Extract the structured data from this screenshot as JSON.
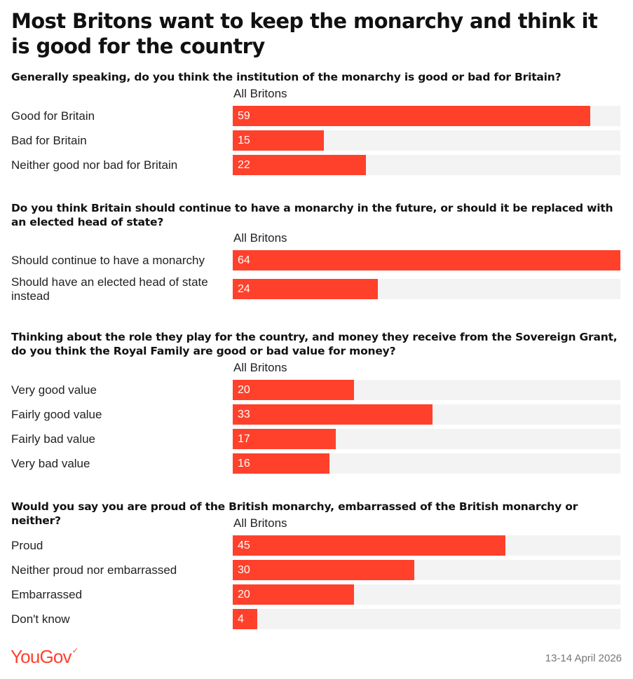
{
  "title": "Most Britons want to keep the monarchy and think it is good for the country",
  "column_header": "All Britons",
  "footer": {
    "logo_text": "YouGov",
    "date": "13-14 April 2026"
  },
  "colors": {
    "bar": "#ff412c",
    "track": "#f3f3f3",
    "logo": "#ff412c"
  },
  "chart_data": [
    {
      "type": "bar",
      "orientation": "horizontal",
      "title": "Generally speaking, do you think the institution of the monarchy is good or bad for Britain?",
      "series": [
        {
          "name": "All Britons",
          "values": [
            59,
            15,
            22
          ]
        }
      ],
      "categories": [
        "Good for Britain",
        "Bad for Britain",
        "Neither good nor bad for Britain"
      ],
      "xlim": [
        0,
        64
      ]
    },
    {
      "type": "bar",
      "orientation": "horizontal",
      "title": "Do you think Britain should continue to have a monarchy in the future, or should it be replaced with an elected head of state?",
      "series": [
        {
          "name": "All Britons",
          "values": [
            64,
            24
          ]
        }
      ],
      "categories": [
        "Should continue to have a monarchy",
        "Should have an elected head of state instead"
      ],
      "xlim": [
        0,
        64
      ]
    },
    {
      "type": "bar",
      "orientation": "horizontal",
      "title": "Thinking about the role they play for the country, and money they receive from the Sovereign Grant, do you think the Royal Family are good or bad value for money?",
      "series": [
        {
          "name": "All Britons",
          "values": [
            20,
            33,
            17,
            16
          ]
        }
      ],
      "categories": [
        "Very good value",
        "Fairly good value",
        "Fairly bad value",
        "Very bad value"
      ],
      "xlim": [
        0,
        64
      ]
    },
    {
      "type": "bar",
      "orientation": "horizontal",
      "title": "Would you say you are proud of the British monarchy, embarrassed of the British monarchy or neither?",
      "series": [
        {
          "name": "All Britons",
          "values": [
            45,
            30,
            20,
            4
          ]
        }
      ],
      "categories": [
        "Proud",
        "Neither proud nor embarrassed",
        "Embarrassed",
        "Don't know"
      ],
      "xlim": [
        0,
        64
      ]
    }
  ]
}
